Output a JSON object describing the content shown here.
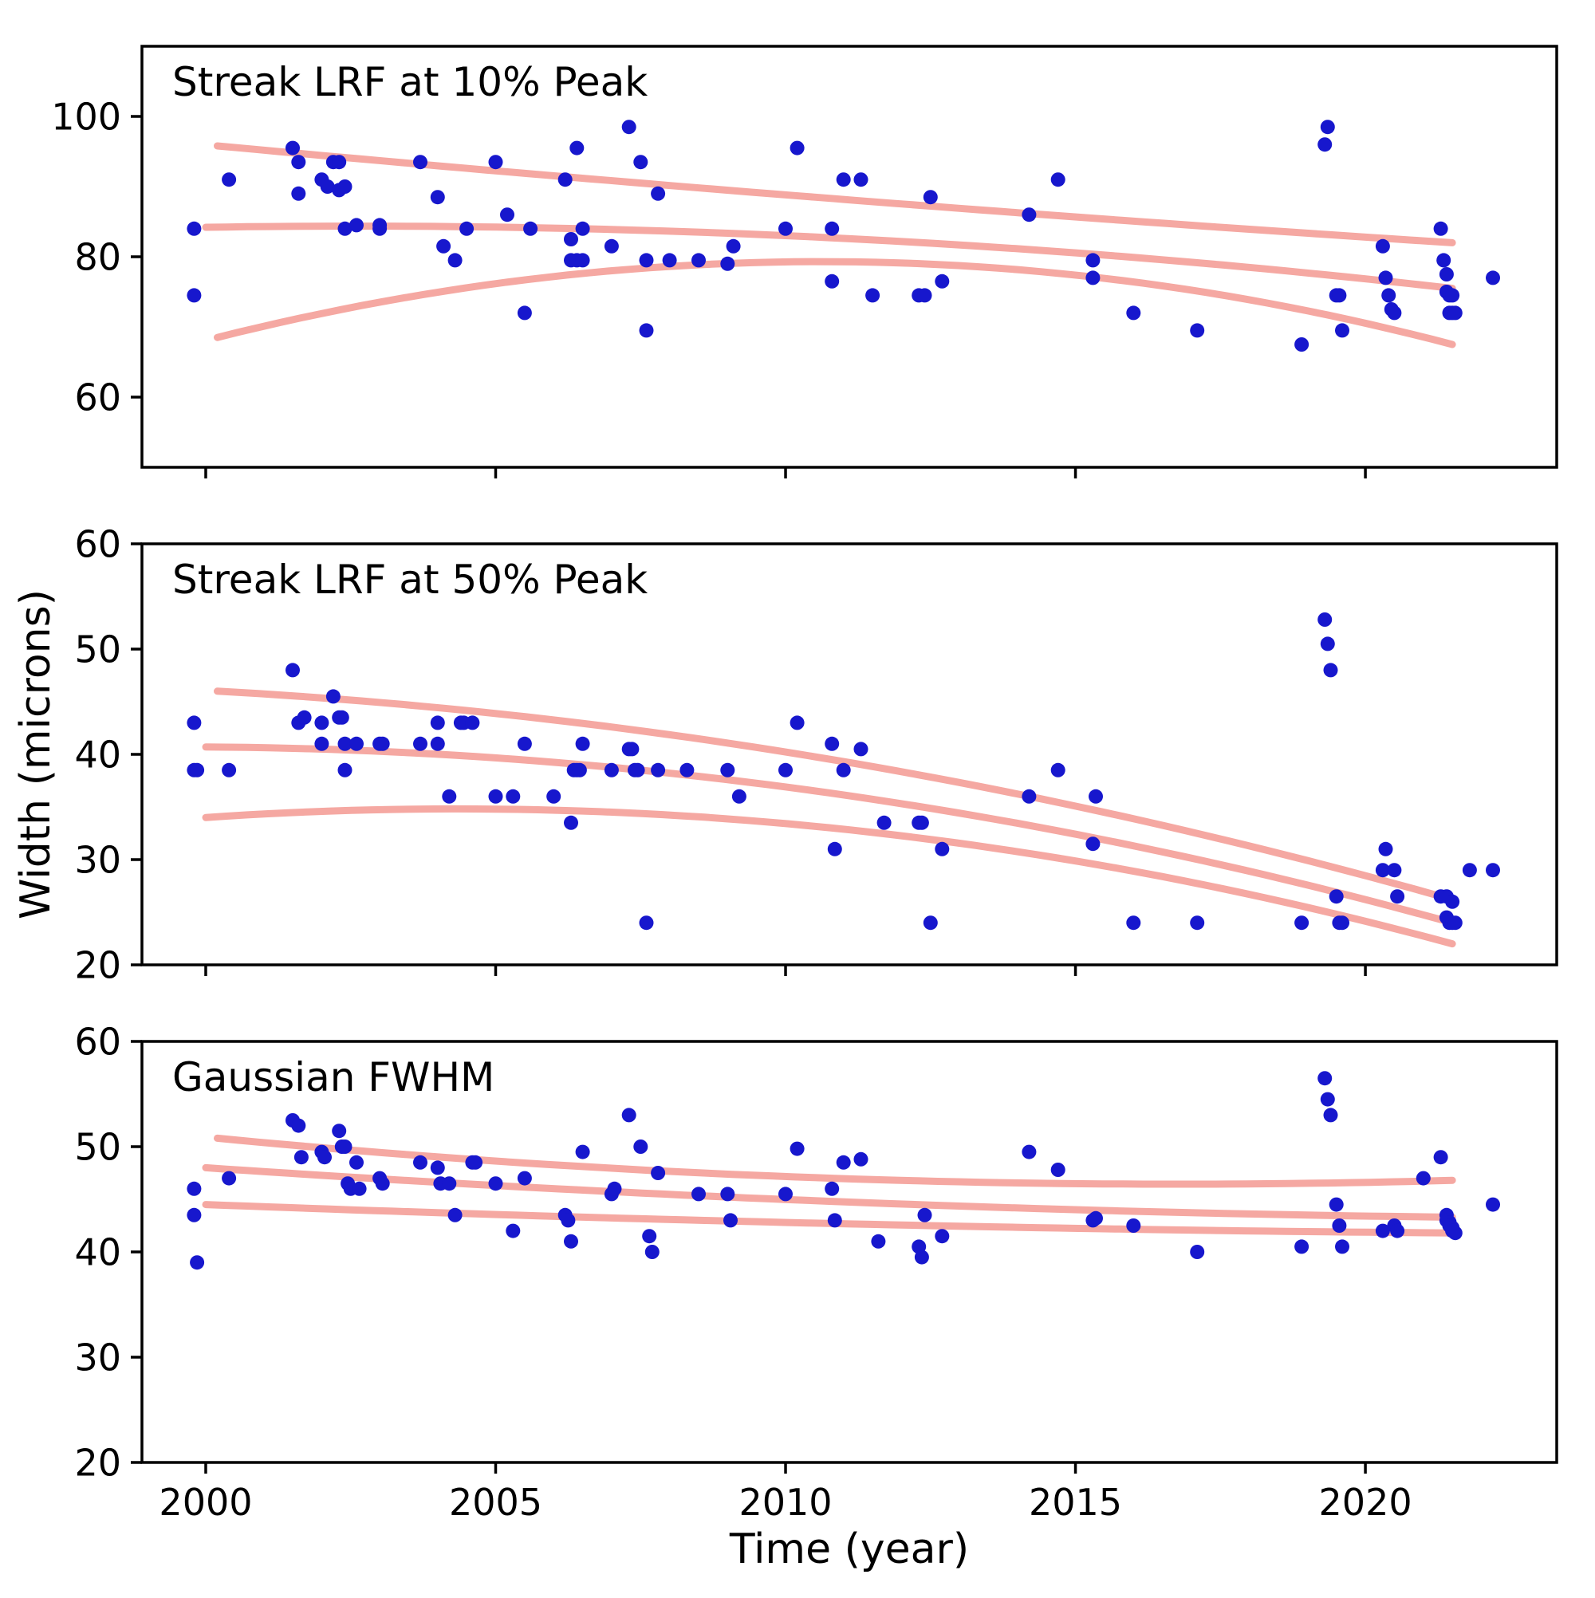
{
  "figure": {
    "xlabel": "Time (year)",
    "ylabel": "Width (microns)",
    "colors": {
      "point": "#1717cd",
      "fit_curve": "#f5a8a2",
      "panel_title": "#0b0bee",
      "axis": "#000000",
      "background": "#ffffff"
    }
  },
  "chart_data": [
    {
      "type": "scatter",
      "title": "Streak LRF at 10% Peak",
      "xlabel": "Time (year)",
      "ylabel": "Width (microns)",
      "xlim": [
        1998.9,
        2023.3
      ],
      "ylim": [
        50,
        110
      ],
      "xticks": [
        2000,
        2005,
        2010,
        2015,
        2020
      ],
      "yticks": [
        60,
        80,
        100
      ],
      "show_xtick_labels": false,
      "points": [
        [
          1999.8,
          84
        ],
        [
          1999.8,
          74.5
        ],
        [
          2000.4,
          91
        ],
        [
          2001.5,
          95.5
        ],
        [
          2001.6,
          93.5
        ],
        [
          2001.6,
          89
        ],
        [
          2002.0,
          91
        ],
        [
          2002.1,
          90
        ],
        [
          2002.2,
          93.5
        ],
        [
          2002.3,
          93.5
        ],
        [
          2002.3,
          89.5
        ],
        [
          2002.4,
          90
        ],
        [
          2002.4,
          84
        ],
        [
          2002.6,
          84.5
        ],
        [
          2003.0,
          84.5
        ],
        [
          2003.0,
          84
        ],
        [
          2003.7,
          93.5
        ],
        [
          2004.0,
          88.5
        ],
        [
          2004.1,
          81.5
        ],
        [
          2004.3,
          79.5
        ],
        [
          2004.5,
          84
        ],
        [
          2005.0,
          93.5
        ],
        [
          2005.2,
          86
        ],
        [
          2005.5,
          72
        ],
        [
          2005.6,
          84
        ],
        [
          2006.2,
          91
        ],
        [
          2006.3,
          82.5
        ],
        [
          2006.3,
          79.5
        ],
        [
          2006.4,
          95.5
        ],
        [
          2006.4,
          79.5
        ],
        [
          2006.5,
          84
        ],
        [
          2006.5,
          79.5
        ],
        [
          2007.0,
          81.5
        ],
        [
          2007.3,
          98.5
        ],
        [
          2007.5,
          93.5
        ],
        [
          2007.6,
          79.5
        ],
        [
          2007.6,
          69.5
        ],
        [
          2007.8,
          89
        ],
        [
          2008.0,
          79.5
        ],
        [
          2008.5,
          79.5
        ],
        [
          2009.0,
          79
        ],
        [
          2009.1,
          81.5
        ],
        [
          2010.0,
          84
        ],
        [
          2010.2,
          95.5
        ],
        [
          2010.8,
          84
        ],
        [
          2010.8,
          76.5
        ],
        [
          2011.0,
          91
        ],
        [
          2011.3,
          91
        ],
        [
          2011.5,
          74.5
        ],
        [
          2012.3,
          74.5
        ],
        [
          2012.4,
          74.5
        ],
        [
          2012.5,
          88.5
        ],
        [
          2012.7,
          76.5
        ],
        [
          2014.2,
          86
        ],
        [
          2014.7,
          91
        ],
        [
          2015.3,
          79.5
        ],
        [
          2015.3,
          77
        ],
        [
          2016.0,
          72
        ],
        [
          2017.1,
          69.5
        ],
        [
          2018.9,
          67.5
        ],
        [
          2019.3,
          96
        ],
        [
          2019.35,
          98.5
        ],
        [
          2019.5,
          74.5
        ],
        [
          2019.55,
          74.5
        ],
        [
          2019.6,
          69.5
        ],
        [
          2020.3,
          81.5
        ],
        [
          2020.35,
          77
        ],
        [
          2020.4,
          74.5
        ],
        [
          2020.45,
          72.5
        ],
        [
          2020.5,
          72
        ],
        [
          2021.3,
          84
        ],
        [
          2021.35,
          79.5
        ],
        [
          2021.4,
          77.5
        ],
        [
          2021.4,
          75
        ],
        [
          2021.45,
          74.5
        ],
        [
          2021.45,
          72
        ],
        [
          2021.5,
          74.5
        ],
        [
          2021.5,
          72
        ],
        [
          2021.55,
          72
        ],
        [
          2022.2,
          77
        ]
      ],
      "fit_curves": [
        [
          [
            2000.2,
            95.8
          ],
          [
            2010.8,
            88.3
          ],
          [
            2021.5,
            82.0
          ]
        ],
        [
          [
            2000.0,
            84.2
          ],
          [
            2010.8,
            82.7
          ],
          [
            2021.5,
            75.5
          ]
        ],
        [
          [
            2000.2,
            68.5
          ],
          [
            2010.8,
            79.3
          ],
          [
            2021.5,
            67.5
          ]
        ]
      ]
    },
    {
      "type": "scatter",
      "title": "Streak LRF at 50% Peak",
      "xlabel": "Time (year)",
      "ylabel": "Width (microns)",
      "xlim": [
        1998.9,
        2023.3
      ],
      "ylim": [
        20,
        60
      ],
      "xticks": [
        2000,
        2005,
        2010,
        2015,
        2020
      ],
      "yticks": [
        20,
        30,
        40,
        50,
        60
      ],
      "show_xtick_labels": false,
      "points": [
        [
          1999.8,
          43
        ],
        [
          1999.8,
          38.5
        ],
        [
          1999.85,
          38.5
        ],
        [
          2000.4,
          38.5
        ],
        [
          2001.5,
          48
        ],
        [
          2001.6,
          43
        ],
        [
          2001.7,
          43.5
        ],
        [
          2002.0,
          43
        ],
        [
          2002.0,
          41
        ],
        [
          2002.2,
          45.5
        ],
        [
          2002.3,
          43.5
        ],
        [
          2002.35,
          43.5
        ],
        [
          2002.4,
          41
        ],
        [
          2002.4,
          38.5
        ],
        [
          2002.6,
          41
        ],
        [
          2003.0,
          41
        ],
        [
          2003.05,
          41
        ],
        [
          2003.7,
          41
        ],
        [
          2004.0,
          43
        ],
        [
          2004.0,
          41
        ],
        [
          2004.2,
          36
        ],
        [
          2004.4,
          43
        ],
        [
          2004.45,
          43
        ],
        [
          2004.6,
          43
        ],
        [
          2005.0,
          36
        ],
        [
          2005.3,
          36
        ],
        [
          2005.5,
          41
        ],
        [
          2006.0,
          36
        ],
        [
          2006.3,
          33.5
        ],
        [
          2006.35,
          38.5
        ],
        [
          2006.4,
          38.5
        ],
        [
          2006.45,
          38.5
        ],
        [
          2006.5,
          41
        ],
        [
          2007.0,
          38.5
        ],
        [
          2007.3,
          40.5
        ],
        [
          2007.35,
          40.5
        ],
        [
          2007.4,
          38.5
        ],
        [
          2007.45,
          38.5
        ],
        [
          2007.6,
          24
        ],
        [
          2007.8,
          38.5
        ],
        [
          2008.3,
          38.5
        ],
        [
          2009.0,
          38.5
        ],
        [
          2009.2,
          36
        ],
        [
          2010.0,
          38.5
        ],
        [
          2010.2,
          43
        ],
        [
          2010.8,
          41
        ],
        [
          2010.85,
          31
        ],
        [
          2011.0,
          38.5
        ],
        [
          2011.3,
          40.5
        ],
        [
          2011.7,
          33.5
        ],
        [
          2012.3,
          33.5
        ],
        [
          2012.35,
          33.5
        ],
        [
          2012.5,
          24
        ],
        [
          2012.7,
          31
        ],
        [
          2014.2,
          36
        ],
        [
          2014.7,
          38.5
        ],
        [
          2015.3,
          31.5
        ],
        [
          2015.35,
          36
        ],
        [
          2016.0,
          24
        ],
        [
          2017.1,
          24
        ],
        [
          2018.9,
          24
        ],
        [
          2019.3,
          52.8
        ],
        [
          2019.35,
          50.5
        ],
        [
          2019.4,
          48
        ],
        [
          2019.5,
          26.5
        ],
        [
          2019.55,
          24
        ],
        [
          2019.6,
          24
        ],
        [
          2020.3,
          29
        ],
        [
          2020.35,
          31
        ],
        [
          2020.5,
          29
        ],
        [
          2020.55,
          26.5
        ],
        [
          2021.3,
          26.5
        ],
        [
          2021.4,
          26.5
        ],
        [
          2021.4,
          24.5
        ],
        [
          2021.45,
          24
        ],
        [
          2021.5,
          26
        ],
        [
          2021.5,
          24
        ],
        [
          2021.55,
          24
        ],
        [
          2021.8,
          29
        ],
        [
          2022.2,
          29
        ]
      ],
      "fit_curves": [
        [
          [
            2000.2,
            46.0
          ],
          [
            2010.8,
            39.5
          ],
          [
            2021.5,
            26.2
          ]
        ],
        [
          [
            2000.0,
            40.7
          ],
          [
            2010.8,
            36.3
          ],
          [
            2021.5,
            24.0
          ]
        ],
        [
          [
            2000.0,
            34.0
          ],
          [
            2010.8,
            33.0
          ],
          [
            2021.5,
            22.0
          ]
        ]
      ]
    },
    {
      "type": "scatter",
      "title": "Gaussian FWHM",
      "xlabel": "Time (year)",
      "ylabel": "Width (microns)",
      "xlim": [
        1998.9,
        2023.3
      ],
      "ylim": [
        20,
        60
      ],
      "xticks": [
        2000,
        2005,
        2010,
        2015,
        2020
      ],
      "yticks": [
        20,
        30,
        40,
        50,
        60
      ],
      "show_xtick_labels": true,
      "points": [
        [
          1999.8,
          46
        ],
        [
          1999.8,
          43.5
        ],
        [
          1999.85,
          39
        ],
        [
          2000.4,
          47
        ],
        [
          2001.5,
          52.5
        ],
        [
          2001.6,
          52
        ],
        [
          2001.65,
          49
        ],
        [
          2002.0,
          49.5
        ],
        [
          2002.05,
          49
        ],
        [
          2002.3,
          51.5
        ],
        [
          2002.35,
          50
        ],
        [
          2002.4,
          50
        ],
        [
          2002.45,
          46.5
        ],
        [
          2002.5,
          46
        ],
        [
          2002.6,
          48.5
        ],
        [
          2002.65,
          46
        ],
        [
          2003.0,
          47
        ],
        [
          2003.05,
          46.5
        ],
        [
          2003.7,
          48.5
        ],
        [
          2004.0,
          48
        ],
        [
          2004.05,
          46.5
        ],
        [
          2004.2,
          46.5
        ],
        [
          2004.3,
          43.5
        ],
        [
          2004.6,
          48.5
        ],
        [
          2004.65,
          48.5
        ],
        [
          2005.0,
          46.5
        ],
        [
          2005.3,
          42
        ],
        [
          2005.5,
          47
        ],
        [
          2006.2,
          43.5
        ],
        [
          2006.25,
          43
        ],
        [
          2006.3,
          41
        ],
        [
          2006.5,
          49.5
        ],
        [
          2007.0,
          45.5
        ],
        [
          2007.05,
          46
        ],
        [
          2007.3,
          53
        ],
        [
          2007.5,
          50
        ],
        [
          2007.65,
          41.5
        ],
        [
          2007.7,
          40
        ],
        [
          2007.8,
          47.5
        ],
        [
          2008.5,
          45.5
        ],
        [
          2009.0,
          45.5
        ],
        [
          2009.05,
          43
        ],
        [
          2010.0,
          45.5
        ],
        [
          2010.2,
          49.8
        ],
        [
          2010.8,
          46
        ],
        [
          2010.85,
          43
        ],
        [
          2011.0,
          48.5
        ],
        [
          2011.3,
          48.8
        ],
        [
          2011.6,
          41
        ],
        [
          2012.3,
          40.5
        ],
        [
          2012.35,
          39.5
        ],
        [
          2012.4,
          43.5
        ],
        [
          2012.7,
          41.5
        ],
        [
          2014.2,
          49.5
        ],
        [
          2014.7,
          47.8
        ],
        [
          2015.3,
          43
        ],
        [
          2015.35,
          43.2
        ],
        [
          2016.0,
          42.5
        ],
        [
          2017.1,
          40
        ],
        [
          2018.9,
          40.5
        ],
        [
          2019.3,
          56.5
        ],
        [
          2019.35,
          54.5
        ],
        [
          2019.4,
          53
        ],
        [
          2019.5,
          44.5
        ],
        [
          2019.55,
          42.5
        ],
        [
          2019.6,
          40.5
        ],
        [
          2020.3,
          42
        ],
        [
          2020.5,
          42.5
        ],
        [
          2020.55,
          42
        ],
        [
          2021.0,
          47
        ],
        [
          2021.3,
          49
        ],
        [
          2021.4,
          43.5
        ],
        [
          2021.4,
          43
        ],
        [
          2021.45,
          42.8
        ],
        [
          2021.45,
          42.5
        ],
        [
          2021.5,
          42.3
        ],
        [
          2021.5,
          42
        ],
        [
          2021.55,
          41.8
        ],
        [
          2022.2,
          44.5
        ]
      ],
      "fit_curves": [
        [
          [
            2000.2,
            50.8
          ],
          [
            2010.8,
            47.0
          ],
          [
            2021.5,
            46.8
          ]
        ],
        [
          [
            2000.0,
            48.0
          ],
          [
            2010.8,
            44.8
          ],
          [
            2021.5,
            43.3
          ]
        ],
        [
          [
            2000.0,
            44.5
          ],
          [
            2010.8,
            42.7
          ],
          [
            2021.5,
            41.8
          ]
        ]
      ]
    }
  ]
}
